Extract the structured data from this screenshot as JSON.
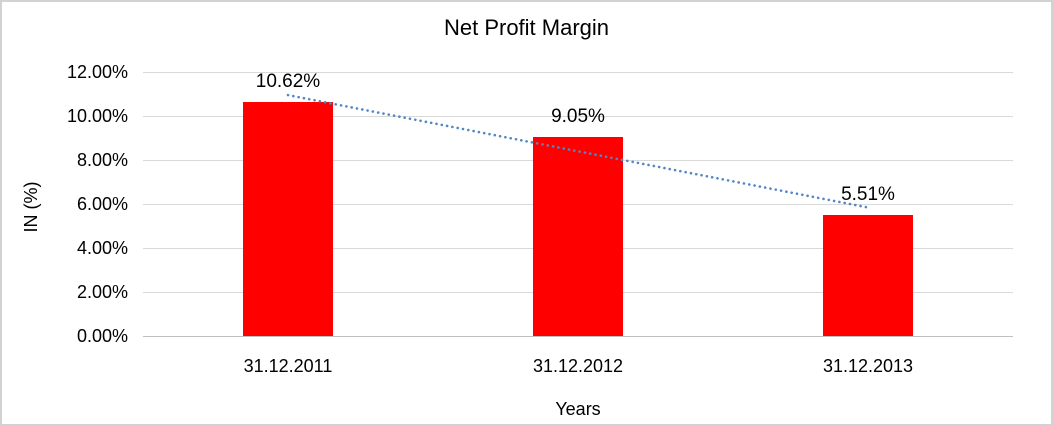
{
  "chart_data": {
    "type": "bar",
    "title": "Net Profit Margin",
    "categories": [
      "31.12.2011",
      "31.12.2012",
      "31.12.2013"
    ],
    "values": [
      10.62,
      9.05,
      5.51
    ],
    "data_labels": [
      "10.62%",
      "9.05%",
      "5.51%"
    ],
    "xlabel": "Years",
    "ylabel": "IN (%)",
    "ylim": [
      0,
      12
    ],
    "yticks": [
      0,
      2,
      4,
      6,
      8,
      10,
      12
    ],
    "ytick_labels": [
      "0.00%",
      "2.00%",
      "4.00%",
      "6.00%",
      "8.00%",
      "10.00%",
      "12.00%"
    ],
    "grid": true,
    "legend": false,
    "trendline": {
      "type": "linear",
      "style": "dotted",
      "start_value": 10.95,
      "end_value": 5.84
    },
    "colors": {
      "bar": "#ff0000",
      "trendline": "#5286c5",
      "gridline": "#d9d9d9",
      "axis_line": "#bfbfbf",
      "text": "#000000",
      "background": "#ffffff",
      "border": "#d2d2d2"
    }
  }
}
